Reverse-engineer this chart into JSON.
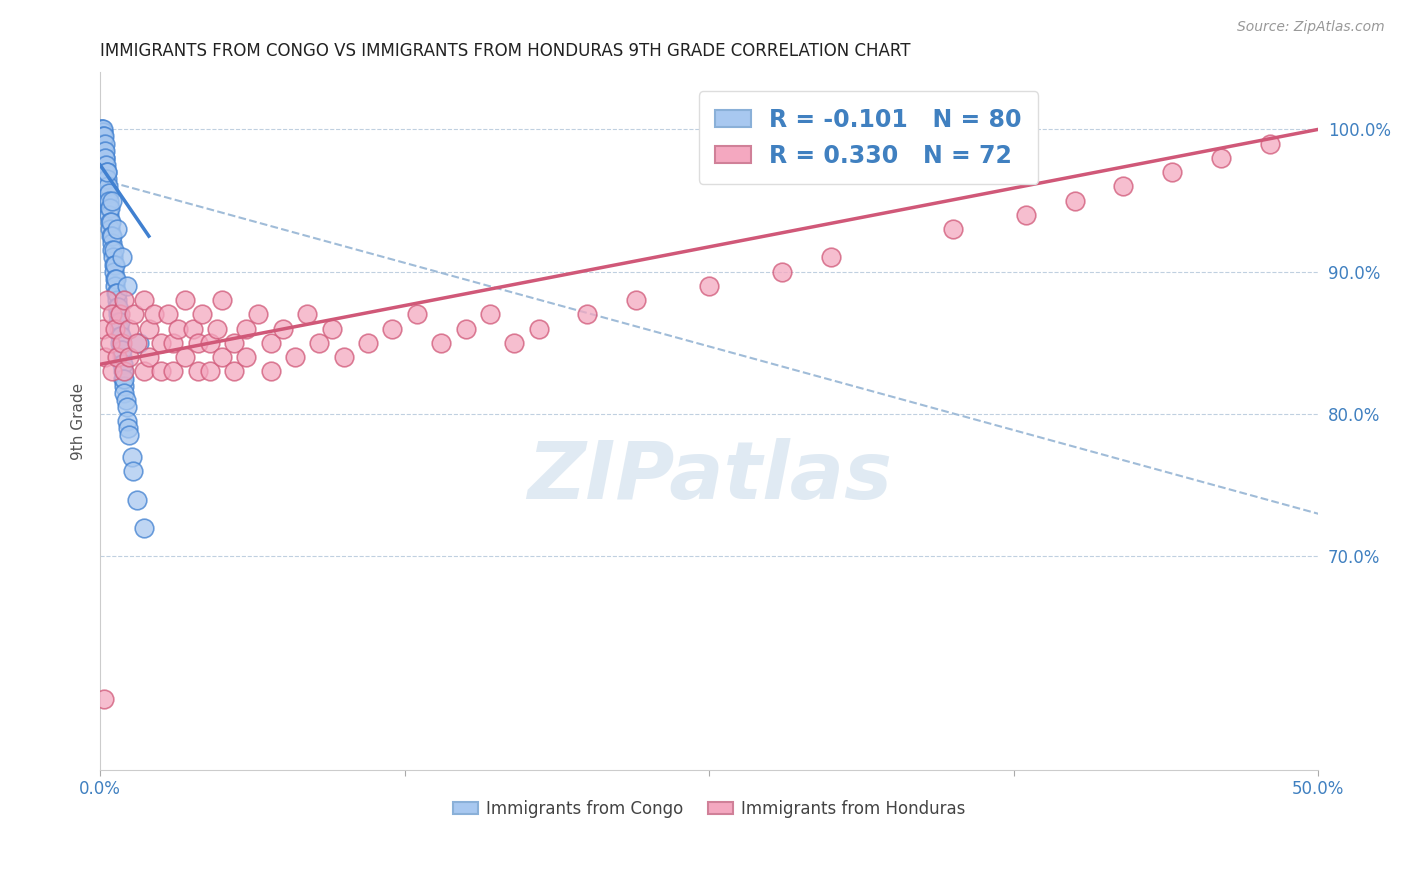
{
  "title": "IMMIGRANTS FROM CONGO VS IMMIGRANTS FROM HONDURAS 9TH GRADE CORRELATION CHART",
  "source": "Source: ZipAtlas.com",
  "ylabel": "9th Grade",
  "xlim": [
    0.0,
    50.0
  ],
  "ylim": [
    55.0,
    104.0
  ],
  "y_ticks": [
    70.0,
    80.0,
    90.0,
    100.0
  ],
  "y_tick_labels": [
    "70.0%",
    "80.0%",
    "90.0%",
    "100.0%"
  ],
  "x_ticks": [
    0.0,
    12.5,
    25.0,
    37.5,
    50.0
  ],
  "x_tick_labels": [
    "0.0%",
    "",
    "",
    "",
    "50.0%"
  ],
  "legend_text1": "R = -0.101   N = 80",
  "legend_text2": "R = 0.330   N = 72",
  "color_congo": "#a8c8f0",
  "color_honduras": "#f4a8c0",
  "color_trendline_congo_solid": "#4080d0",
  "color_trendline_honduras_solid": "#d05878",
  "color_dashed": "#a0bcd8",
  "legend_label_congo": "Immigrants from Congo",
  "legend_label_honduras": "Immigrants from Honduras",
  "watermark": "ZIPatlas",
  "congo_x": [
    0.05,
    0.05,
    0.08,
    0.1,
    0.1,
    0.12,
    0.12,
    0.15,
    0.15,
    0.18,
    0.18,
    0.2,
    0.2,
    0.2,
    0.22,
    0.22,
    0.25,
    0.25,
    0.28,
    0.28,
    0.3,
    0.3,
    0.32,
    0.35,
    0.35,
    0.38,
    0.38,
    0.4,
    0.4,
    0.42,
    0.45,
    0.45,
    0.48,
    0.5,
    0.5,
    0.52,
    0.55,
    0.55,
    0.58,
    0.6,
    0.6,
    0.62,
    0.65,
    0.65,
    0.68,
    0.7,
    0.7,
    0.72,
    0.75,
    0.75,
    0.78,
    0.8,
    0.8,
    0.82,
    0.85,
    0.85,
    0.88,
    0.9,
    0.9,
    0.92,
    0.95,
    0.95,
    0.98,
    1.0,
    1.0,
    1.05,
    1.1,
    1.1,
    1.15,
    1.2,
    1.3,
    1.35,
    1.5,
    1.8,
    0.3,
    0.5,
    0.7,
    0.9,
    1.1,
    1.6
  ],
  "congo_y": [
    100.0,
    99.5,
    100.0,
    99.8,
    100.0,
    99.5,
    99.0,
    99.5,
    98.5,
    99.0,
    98.0,
    98.5,
    97.5,
    97.0,
    98.0,
    96.5,
    97.5,
    96.0,
    97.0,
    95.5,
    96.5,
    95.0,
    96.0,
    95.5,
    94.5,
    95.0,
    94.0,
    94.5,
    93.5,
    93.0,
    93.5,
    92.5,
    92.0,
    92.5,
    91.5,
    91.0,
    91.5,
    90.5,
    90.0,
    90.5,
    89.5,
    89.0,
    89.5,
    88.5,
    88.0,
    88.5,
    87.5,
    87.0,
    87.5,
    86.5,
    86.0,
    86.5,
    85.5,
    85.0,
    85.5,
    84.5,
    84.0,
    84.5,
    83.5,
    83.0,
    83.5,
    82.5,
    82.0,
    82.5,
    81.5,
    81.0,
    80.5,
    79.5,
    79.0,
    78.5,
    77.0,
    76.0,
    74.0,
    72.0,
    97.0,
    95.0,
    93.0,
    91.0,
    89.0,
    85.0
  ],
  "honduras_x": [
    0.1,
    0.2,
    0.3,
    0.4,
    0.5,
    0.5,
    0.6,
    0.7,
    0.8,
    0.9,
    1.0,
    1.0,
    1.2,
    1.2,
    1.4,
    1.5,
    1.8,
    1.8,
    2.0,
    2.0,
    2.2,
    2.5,
    2.5,
    2.8,
    3.0,
    3.0,
    3.2,
    3.5,
    3.5,
    3.8,
    4.0,
    4.0,
    4.2,
    4.5,
    4.5,
    4.8,
    5.0,
    5.0,
    5.5,
    5.5,
    6.0,
    6.0,
    6.5,
    7.0,
    7.0,
    7.5,
    8.0,
    8.5,
    9.0,
    9.5,
    10.0,
    11.0,
    12.0,
    13.0,
    14.0,
    15.0,
    16.0,
    17.0,
    18.0,
    20.0,
    22.0,
    25.0,
    28.0,
    30.0,
    35.0,
    38.0,
    40.0,
    42.0,
    44.0,
    46.0,
    48.0,
    0.15
  ],
  "honduras_y": [
    86.0,
    84.0,
    88.0,
    85.0,
    87.0,
    83.0,
    86.0,
    84.0,
    87.0,
    85.0,
    88.0,
    83.0,
    86.0,
    84.0,
    87.0,
    85.0,
    88.0,
    83.0,
    86.0,
    84.0,
    87.0,
    85.0,
    83.0,
    87.0,
    85.0,
    83.0,
    86.0,
    88.0,
    84.0,
    86.0,
    85.0,
    83.0,
    87.0,
    85.0,
    83.0,
    86.0,
    88.0,
    84.0,
    85.0,
    83.0,
    86.0,
    84.0,
    87.0,
    85.0,
    83.0,
    86.0,
    84.0,
    87.0,
    85.0,
    86.0,
    84.0,
    85.0,
    86.0,
    87.0,
    85.0,
    86.0,
    87.0,
    85.0,
    86.0,
    87.0,
    88.0,
    89.0,
    90.0,
    91.0,
    93.0,
    94.0,
    95.0,
    96.0,
    97.0,
    98.0,
    99.0,
    60.0
  ],
  "congo_trendline_x0": 0.0,
  "congo_trendline_y0": 97.5,
  "congo_trendline_x1": 2.0,
  "congo_trendline_y1": 92.5,
  "honduras_trendline_x0": 0.0,
  "honduras_trendline_y0": 83.5,
  "honduras_trendline_x1": 50.0,
  "honduras_trendline_y1": 100.0,
  "dashed_x0": 0.0,
  "dashed_y0": 96.5,
  "dashed_x1": 50.0,
  "dashed_y1": 73.0
}
